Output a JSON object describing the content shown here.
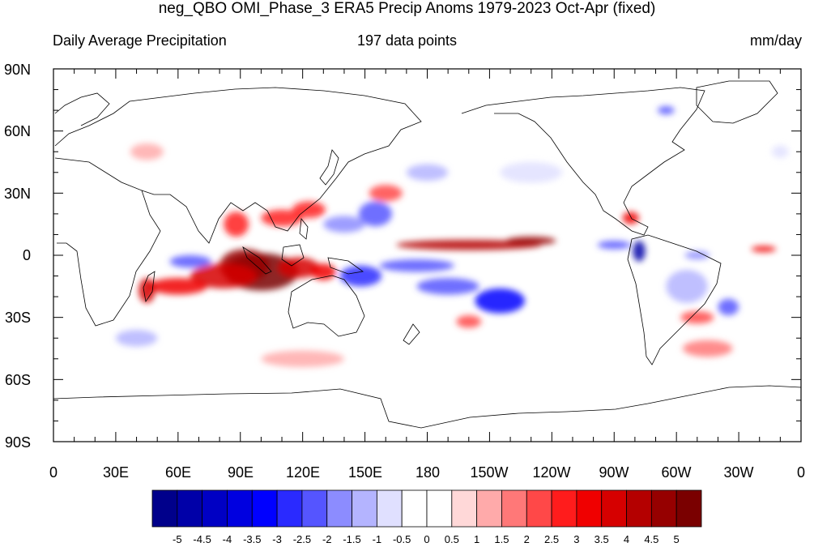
{
  "title": "neg_QBO OMI_Phase_3 ERA5 Precip Anoms 1979-2023 Oct-Apr (fixed)",
  "subtitle_left": "Daily Average Precipitation",
  "subtitle_center": "197 data points",
  "subtitle_right": "mm/day",
  "lat_labels": [
    "90N",
    "60N",
    "30N",
    "0",
    "30S",
    "60S",
    "90S"
  ],
  "lon_labels": [
    "0",
    "30E",
    "60E",
    "90E",
    "120E",
    "150E",
    "180",
    "150W",
    "120W",
    "90W",
    "60W",
    "30W",
    "0"
  ],
  "colorbar": {
    "labels": [
      "-5",
      "-4.5",
      "-4",
      "-3.5",
      "-3",
      "-2.5",
      "-2",
      "-1.5",
      "-1",
      "-0.5",
      "0",
      "0.5",
      "1",
      "1.5",
      "2",
      "2.5",
      "3",
      "3.5",
      "4",
      "4.5",
      "5"
    ],
    "colors": [
      "#00008b",
      "#0000a8",
      "#0000c4",
      "#0000e0",
      "#0000ff",
      "#2a2aff",
      "#5555ff",
      "#8c8cff",
      "#b4b4ff",
      "#e0e0ff",
      "#ffffff",
      "#ffffff",
      "#ffd8d8",
      "#ffaaaa",
      "#ff7878",
      "#ff4848",
      "#ff1c1c",
      "#f00000",
      "#d60000",
      "#b40000",
      "#960000",
      "#7a0000"
    ]
  },
  "map": {
    "lon_range": [
      0,
      360
    ],
    "lat_range": [
      -90,
      90
    ],
    "anomalies": [
      {
        "lon": 100,
        "lat": -8,
        "rx": 18,
        "ry": 9,
        "v": 5
      },
      {
        "lon": 92,
        "lat": -5,
        "rx": 12,
        "ry": 8,
        "v": 4.5
      },
      {
        "lon": 82,
        "lat": -10,
        "rx": 16,
        "ry": 6,
        "v": 3.5
      },
      {
        "lon": 118,
        "lat": -6,
        "rx": 10,
        "ry": 5,
        "v": 3.5
      },
      {
        "lon": 130,
        "lat": -8,
        "rx": 6,
        "ry": 4,
        "v": 3
      },
      {
        "lon": 60,
        "lat": -15,
        "rx": 14,
        "ry": 4,
        "v": 3
      },
      {
        "lon": 45,
        "lat": -17,
        "rx": 4,
        "ry": 6,
        "v": 3.5
      },
      {
        "lon": 66,
        "lat": -3,
        "rx": 10,
        "ry": 3,
        "v": -2.5
      },
      {
        "lon": 88,
        "lat": 15,
        "rx": 6,
        "ry": 6,
        "v": 2.5
      },
      {
        "lon": 110,
        "lat": 18,
        "rx": 10,
        "ry": 4,
        "v": 2.5
      },
      {
        "lon": 123,
        "lat": 22,
        "rx": 8,
        "ry": 4,
        "v": 2.5
      },
      {
        "lon": 160,
        "lat": 30,
        "rx": 8,
        "ry": 4,
        "v": 2
      },
      {
        "lon": 155,
        "lat": 20,
        "rx": 8,
        "ry": 6,
        "v": -2.5
      },
      {
        "lon": 140,
        "lat": 15,
        "rx": 10,
        "ry": 4,
        "v": -2
      },
      {
        "lon": 200,
        "lat": 5,
        "rx": 35,
        "ry": 2.5,
        "v": 4
      },
      {
        "lon": 230,
        "lat": 7,
        "rx": 12,
        "ry": 2,
        "v": 4.5
      },
      {
        "lon": 175,
        "lat": -5,
        "rx": 18,
        "ry": 3,
        "v": -2.5
      },
      {
        "lon": 148,
        "lat": -10,
        "rx": 10,
        "ry": 5,
        "v": -3
      },
      {
        "lon": 190,
        "lat": -15,
        "rx": 15,
        "ry": 4,
        "v": -2.5
      },
      {
        "lon": 215,
        "lat": -22,
        "rx": 12,
        "ry": 6,
        "v": -3.5
      },
      {
        "lon": 200,
        "lat": -32,
        "rx": 6,
        "ry": 3,
        "v": 2
      },
      {
        "lon": 270,
        "lat": 5,
        "rx": 8,
        "ry": 2,
        "v": -2.5
      },
      {
        "lon": 282,
        "lat": 2,
        "rx": 3,
        "ry": 5,
        "v": -5
      },
      {
        "lon": 278,
        "lat": 18,
        "rx": 4,
        "ry": 3,
        "v": 3
      },
      {
        "lon": 305,
        "lat": -15,
        "rx": 10,
        "ry": 8,
        "v": -1.5
      },
      {
        "lon": 325,
        "lat": -25,
        "rx": 5,
        "ry": 4,
        "v": -2.5
      },
      {
        "lon": 310,
        "lat": -30,
        "rx": 8,
        "ry": 3,
        "v": 2
      },
      {
        "lon": 315,
        "lat": -45,
        "rx": 12,
        "ry": 4,
        "v": 1.5
      },
      {
        "lon": 342,
        "lat": 3,
        "rx": 6,
        "ry": 1.5,
        "v": 3
      },
      {
        "lon": 310,
        "lat": 0,
        "rx": 6,
        "ry": 2,
        "v": -2
      },
      {
        "lon": 350,
        "lat": 50,
        "rx": 4,
        "ry": 3,
        "v": -1
      },
      {
        "lon": 295,
        "lat": 70,
        "rx": 4,
        "ry": 2,
        "v": -2.5
      },
      {
        "lon": 45,
        "lat": 50,
        "rx": 8,
        "ry": 4,
        "v": 1
      },
      {
        "lon": 120,
        "lat": -50,
        "rx": 20,
        "ry": 4,
        "v": 1
      },
      {
        "lon": 40,
        "lat": -40,
        "rx": 10,
        "ry": 4,
        "v": -1.5
      },
      {
        "lon": 230,
        "lat": 40,
        "rx": 15,
        "ry": 5,
        "v": -1
      },
      {
        "lon": 180,
        "lat": 40,
        "rx": 10,
        "ry": 4,
        "v": -1.5
      }
    ]
  }
}
